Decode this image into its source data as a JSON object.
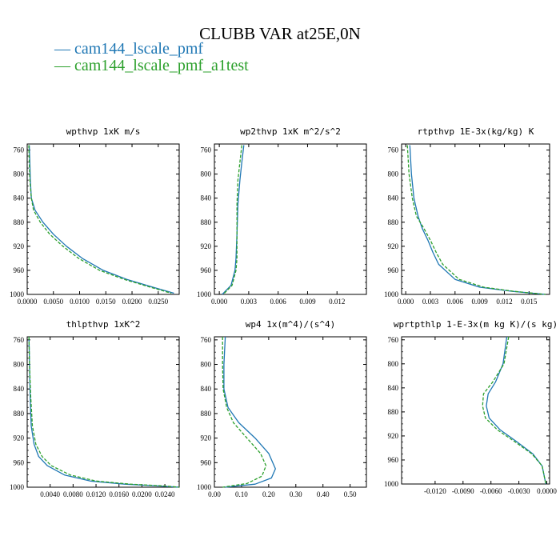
{
  "figure": {
    "title": "CLUBB VAR at25E,0N",
    "legend": [
      {
        "label": "— cam144_lscale_pmf",
        "color": "#1f77b4"
      },
      {
        "label": "— cam144_lscale_pmf_a1test",
        "color": "#2ca02c"
      }
    ]
  },
  "chart_data": [
    {
      "type": "line",
      "title": "wpthvp  1xK m/s",
      "xlim": [
        0.0,
        0.029
      ],
      "ylim": [
        1000,
        750
      ],
      "y_reversed": true,
      "x_ticks": [
        0.0,
        0.005,
        0.01,
        0.015,
        0.02,
        0.025
      ],
      "x_tick_labels": [
        "0.0000",
        "0.0050",
        "0.0100",
        "0.0150",
        "0.0200",
        "0.0250"
      ],
      "y_ticks": [
        760,
        800,
        840,
        880,
        920,
        960,
        1000
      ],
      "series": [
        {
          "color": "#1f77b4",
          "dashed": false,
          "x": [
            0.0004,
            0.0005,
            0.0006,
            0.0008,
            0.0015,
            0.003,
            0.005,
            0.0075,
            0.0105,
            0.0145,
            0.019,
            0.024,
            0.028
          ],
          "y": [
            752,
            780,
            810,
            840,
            860,
            880,
            900,
            920,
            940,
            960,
            975,
            988,
            998
          ]
        },
        {
          "color": "#2ca02c",
          "dashed": true,
          "x": [
            0.0003,
            0.0004,
            0.0005,
            0.0008,
            0.0012,
            0.0025,
            0.0043,
            0.0068,
            0.0098,
            0.0138,
            0.0185,
            0.0235,
            0.0275
          ],
          "y": [
            752,
            780,
            810,
            840,
            860,
            880,
            900,
            920,
            940,
            960,
            975,
            988,
            998
          ]
        }
      ]
    },
    {
      "type": "line",
      "title": "wp2thvp  1xK m^2/s^2",
      "xlim": [
        -0.0005,
        0.015
      ],
      "ylim": [
        1000,
        750
      ],
      "y_reversed": true,
      "x_ticks": [
        0.0,
        0.003,
        0.006,
        0.009,
        0.012
      ],
      "x_tick_labels": [
        "0.000",
        "0.003",
        "0.006",
        "0.009",
        "0.012"
      ],
      "y_ticks": [
        760,
        800,
        840,
        880,
        920,
        960,
        1000
      ],
      "series": [
        {
          "color": "#1f77b4",
          "dashed": false,
          "x": [
            0.0025,
            0.0023,
            0.0021,
            0.0019,
            0.0018,
            0.0017,
            0.0016,
            0.0012,
            0.0003
          ],
          "y": [
            752,
            780,
            810,
            850,
            900,
            940,
            960,
            985,
            1000
          ]
        },
        {
          "color": "#2ca02c",
          "dashed": true,
          "x": [
            0.0023,
            0.0021,
            0.0019,
            0.0018,
            0.0018,
            0.0018,
            0.0017,
            0.0013,
            0.0004
          ],
          "y": [
            752,
            780,
            810,
            850,
            900,
            940,
            960,
            985,
            1000
          ]
        }
      ]
    },
    {
      "type": "line",
      "title": "rtpthvp  1E-3x(kg/kg) K",
      "xlim": [
        -0.0005,
        0.0175
      ],
      "ylim": [
        1000,
        750
      ],
      "y_reversed": true,
      "x_ticks": [
        0.0,
        0.003,
        0.006,
        0.009,
        0.012,
        0.015
      ],
      "x_tick_labels": [
        "0.000",
        "0.003",
        "0.006",
        "0.009",
        "0.012",
        "0.015"
      ],
      "y_ticks": [
        760,
        800,
        840,
        880,
        920,
        960,
        1000
      ],
      "series": [
        {
          "color": "#1f77b4",
          "dashed": false,
          "x": [
            0.0005,
            0.0007,
            0.001,
            0.0015,
            0.002,
            0.0027,
            0.0033,
            0.004,
            0.006,
            0.009,
            0.013,
            0.017
          ],
          "y": [
            752,
            800,
            840,
            870,
            890,
            910,
            930,
            950,
            975,
            988,
            995,
            1000
          ]
        },
        {
          "color": "#2ca02c",
          "dashed": true,
          "x": [
            0.0002,
            0.0004,
            0.0008,
            0.0013,
            0.0022,
            0.003,
            0.0037,
            0.0045,
            0.0065,
            0.0095,
            0.0132,
            0.017
          ],
          "y": [
            752,
            800,
            840,
            870,
            890,
            910,
            930,
            950,
            975,
            988,
            995,
            1000
          ]
        }
      ]
    },
    {
      "type": "line",
      "title": "thlpthvp  1xK^2",
      "xlim": [
        0.0,
        0.0265
      ],
      "ylim": [
        1000,
        755
      ],
      "y_reversed": true,
      "x_ticks": [
        0.004,
        0.008,
        0.012,
        0.016,
        0.02,
        0.024
      ],
      "x_tick_labels": [
        "0.0040",
        "0.0080",
        "0.0120",
        "0.0160",
        "0.0200",
        "0.0240"
      ],
      "y_ticks": [
        760,
        800,
        840,
        880,
        920,
        960,
        1000
      ],
      "series": [
        {
          "color": "#1f77b4",
          "dashed": false,
          "x": [
            0.0003,
            0.0004,
            0.0005,
            0.0007,
            0.0012,
            0.002,
            0.0035,
            0.0065,
            0.011,
            0.017,
            0.023,
            0.0265
          ],
          "y": [
            755,
            800,
            850,
            900,
            930,
            950,
            965,
            980,
            990,
            995,
            998,
            1000
          ]
        },
        {
          "color": "#2ca02c",
          "dashed": true,
          "x": [
            0.0003,
            0.0004,
            0.0006,
            0.0009,
            0.0015,
            0.0026,
            0.0042,
            0.0075,
            0.012,
            0.018,
            0.024,
            0.0265
          ],
          "y": [
            755,
            800,
            850,
            900,
            930,
            950,
            965,
            980,
            990,
            995,
            998,
            1000
          ]
        }
      ]
    },
    {
      "type": "line",
      "title": "wp4  1x(m^4)/(s^4)",
      "xlim": [
        0.0,
        0.56
      ],
      "ylim": [
        1000,
        755
      ],
      "y_reversed": true,
      "x_ticks": [
        0.0,
        0.1,
        0.2,
        0.3,
        0.4,
        0.5
      ],
      "x_tick_labels": [
        "0.00",
        "0.10",
        "0.20",
        "0.30",
        "0.40",
        "0.50"
      ],
      "y_ticks": [
        760,
        800,
        840,
        880,
        920,
        960,
        1000
      ],
      "series": [
        {
          "color": "#1f77b4",
          "dashed": false,
          "x": [
            0.04,
            0.035,
            0.035,
            0.05,
            0.09,
            0.15,
            0.2,
            0.225,
            0.21,
            0.15,
            0.04
          ],
          "y": [
            755,
            800,
            840,
            870,
            895,
            920,
            945,
            970,
            985,
            995,
            1000
          ]
        },
        {
          "color": "#2ca02c",
          "dashed": true,
          "x": [
            0.03,
            0.03,
            0.032,
            0.045,
            0.07,
            0.12,
            0.17,
            0.19,
            0.175,
            0.12,
            0.03
          ],
          "y": [
            755,
            800,
            840,
            870,
            895,
            920,
            945,
            965,
            982,
            994,
            1000
          ]
        }
      ]
    },
    {
      "type": "line",
      "title": "wprtpthlp  1-E-3x(m kg K)/(s kg)",
      "xlim": [
        -0.0156,
        0.0003
      ],
      "ylim": [
        1000,
        755
      ],
      "y_reversed": true,
      "x_ticks": [
        -0.012,
        -0.009,
        -0.006,
        -0.003,
        0.0
      ],
      "x_tick_labels": [
        "-0.0120",
        "-0.0090",
        "-0.0060",
        "-0.0030",
        "0.0000"
      ],
      "y_ticks": [
        760,
        800,
        840,
        880,
        920,
        960,
        1000
      ],
      "series": [
        {
          "color": "#1f77b4",
          "dashed": false,
          "x": [
            -0.0043,
            -0.0047,
            -0.0055,
            -0.0063,
            -0.0065,
            -0.0062,
            -0.005,
            -0.0032,
            -0.0015,
            -0.0005,
            -0.0001
          ],
          "y": [
            755,
            800,
            830,
            850,
            870,
            890,
            910,
            930,
            950,
            970,
            1000
          ]
        },
        {
          "color": "#2ca02c",
          "dashed": true,
          "x": [
            -0.0041,
            -0.0046,
            -0.0058,
            -0.0068,
            -0.0069,
            -0.0066,
            -0.0053,
            -0.0034,
            -0.0016,
            -0.0005,
            -0.0001
          ],
          "y": [
            755,
            800,
            830,
            850,
            870,
            890,
            910,
            930,
            950,
            970,
            1000
          ]
        }
      ]
    }
  ]
}
